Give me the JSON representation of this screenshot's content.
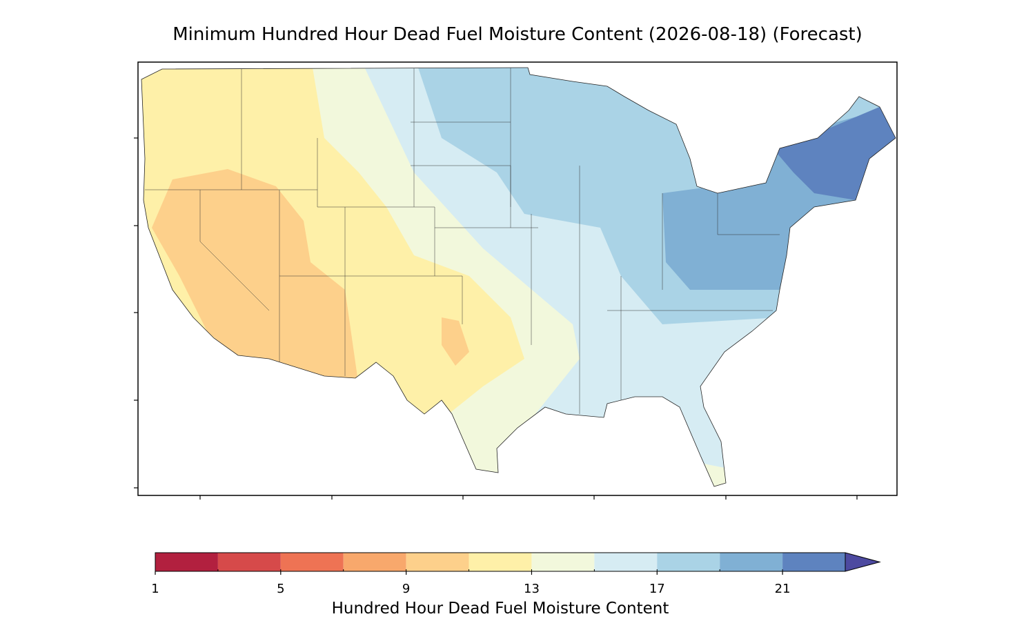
{
  "title": "Minimum Hundred Hour Dead Fuel Moisture Content (2026-08-18) (Forecast)",
  "colorbar": {
    "label": "Hundred Hour Dead Fuel Moisture Content",
    "levels": [
      1,
      3,
      5,
      7,
      9,
      11,
      13,
      15,
      17,
      19,
      21,
      23
    ],
    "colors": [
      "#b2203f",
      "#d64a4a",
      "#ee7354",
      "#f8a86c",
      "#fdd08b",
      "#fef0a8",
      "#f2f8dc",
      "#d6ecf3",
      "#aad3e6",
      "#80b0d4",
      "#5e83bf"
    ],
    "extend_color": "#4d4aa0",
    "ticks": [
      1,
      5,
      9,
      13,
      17,
      21
    ]
  }
}
